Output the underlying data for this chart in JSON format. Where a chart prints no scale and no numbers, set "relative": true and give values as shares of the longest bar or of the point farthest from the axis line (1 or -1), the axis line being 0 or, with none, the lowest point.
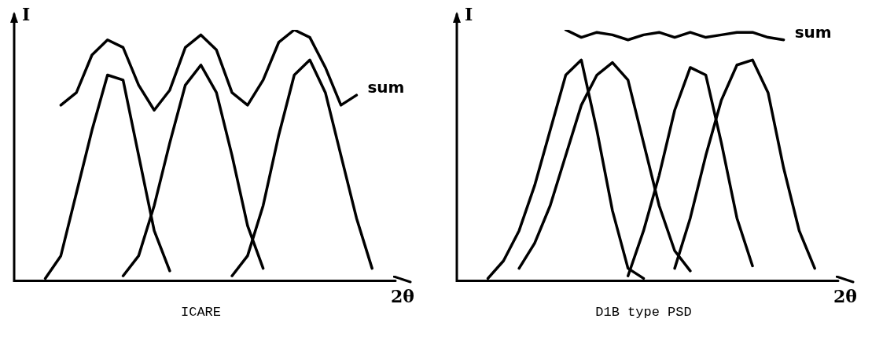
{
  "chart_data": [
    {
      "type": "line",
      "title": "ICARE",
      "xlabel": "2θ",
      "ylabel": "I",
      "relative": true,
      "marker": "none",
      "legend": false,
      "categories": [
        null,
        null,
        null,
        null,
        null,
        null,
        null,
        null,
        null,
        null,
        null,
        null,
        null,
        null,
        null,
        null,
        null,
        null,
        null,
        null,
        null,
        null,
        null,
        null,
        null
      ],
      "series": [
        {
          "color": "#000000",
          "values": [
            null,
            null,
            0.01,
            0.1,
            0.35,
            0.6,
            0.82,
            0.8,
            0.5,
            0.2,
            0.04,
            null,
            null,
            null,
            null,
            null,
            null,
            null,
            null,
            null,
            null,
            null,
            null,
            null,
            null
          ]
        },
        {
          "color": "#000000",
          "values": [
            null,
            null,
            null,
            null,
            null,
            null,
            null,
            0.02,
            0.1,
            0.3,
            0.55,
            0.78,
            0.86,
            0.75,
            0.5,
            0.22,
            0.05,
            null,
            null,
            null,
            null,
            null,
            null,
            null,
            null
          ]
        },
        {
          "color": "#000000",
          "values": [
            null,
            null,
            null,
            null,
            null,
            null,
            null,
            null,
            null,
            null,
            null,
            null,
            null,
            null,
            0.02,
            0.1,
            0.3,
            0.58,
            0.82,
            0.88,
            0.75,
            0.5,
            0.25,
            0.05,
            null
          ]
        },
        {
          "name": "sum",
          "color": "#000000",
          "values": [
            null,
            null,
            null,
            0.7,
            0.75,
            0.9,
            0.96,
            0.93,
            0.78,
            0.68,
            0.76,
            0.93,
            0.98,
            0.92,
            0.75,
            0.7,
            0.8,
            0.95,
            1,
            0.97,
            0.85,
            0.7,
            0.74,
            null,
            null
          ]
        }
      ]
    },
    {
      "type": "line",
      "title": "D1B type PSD",
      "xlabel": "2θ",
      "ylabel": "I",
      "relative": true,
      "marker": "none",
      "legend": false,
      "categories": [
        null,
        null,
        null,
        null,
        null,
        null,
        null,
        null,
        null,
        null,
        null,
        null,
        null,
        null,
        null,
        null,
        null,
        null,
        null,
        null,
        null,
        null,
        null,
        null,
        null
      ],
      "series": [
        {
          "color": "#000000",
          "values": [
            null,
            null,
            0.01,
            0.08,
            0.2,
            0.38,
            0.6,
            0.82,
            0.88,
            0.6,
            0.28,
            0.05,
            0.01,
            null,
            null,
            null,
            null,
            null,
            null,
            null,
            null,
            null,
            null,
            null,
            null
          ]
        },
        {
          "color": "#000000",
          "values": [
            null,
            null,
            null,
            null,
            0.05,
            0.15,
            0.3,
            0.5,
            0.7,
            0.82,
            0.87,
            0.8,
            0.55,
            0.3,
            0.12,
            0.04,
            null,
            null,
            null,
            null,
            null,
            null,
            null,
            null,
            null
          ]
        },
        {
          "color": "#000000",
          "values": [
            null,
            null,
            null,
            null,
            null,
            null,
            null,
            null,
            null,
            null,
            null,
            0.02,
            0.2,
            0.42,
            0.68,
            0.85,
            0.82,
            0.55,
            0.25,
            0.06,
            null,
            null,
            null,
            null,
            null
          ]
        },
        {
          "color": "#000000",
          "values": [
            null,
            null,
            null,
            null,
            null,
            null,
            null,
            null,
            null,
            null,
            null,
            null,
            null,
            null,
            0.05,
            0.25,
            0.5,
            0.72,
            0.86,
            0.88,
            0.75,
            0.45,
            0.2,
            0.05,
            null
          ]
        },
        {
          "name": "sum",
          "color": "#000000",
          "values": [
            null,
            null,
            null,
            null,
            null,
            null,
            null,
            1,
            0.97,
            0.99,
            0.98,
            0.96,
            0.98,
            0.99,
            0.97,
            0.99,
            0.97,
            0.98,
            0.99,
            0.99,
            0.97,
            0.96,
            null,
            null,
            null
          ]
        }
      ]
    }
  ]
}
